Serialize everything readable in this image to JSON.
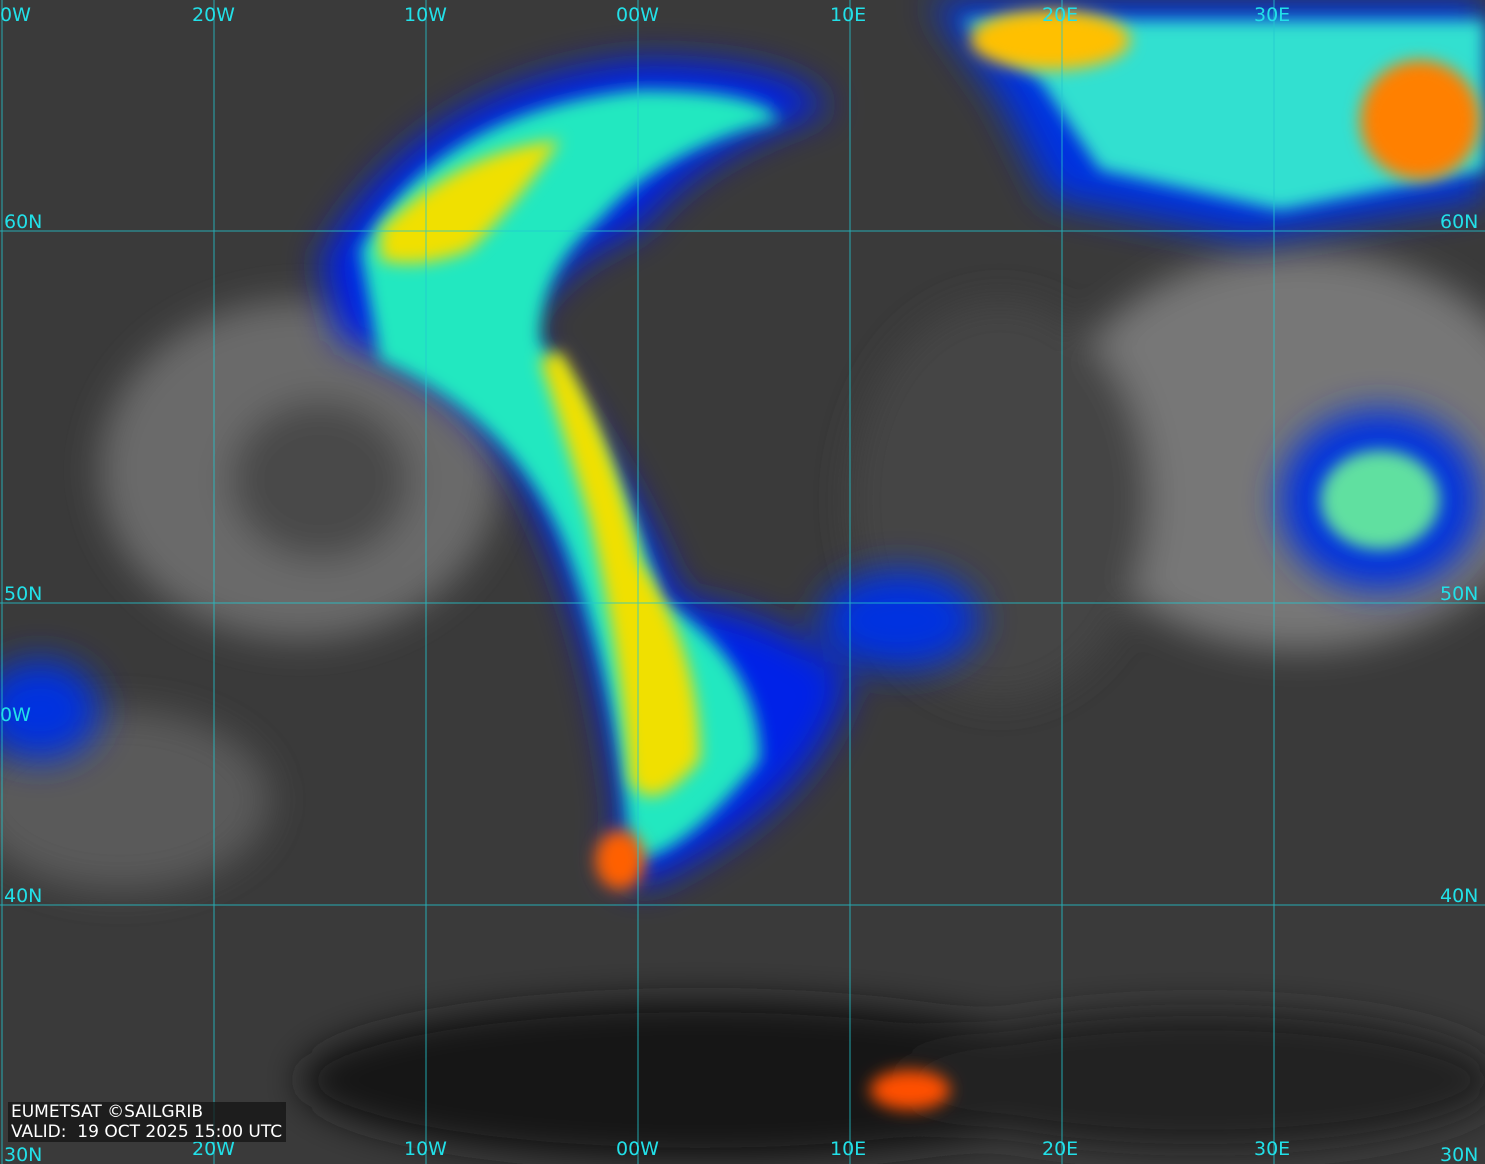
{
  "credit": "EUMETSAT ©SAILGRIB",
  "valid_label": "VALID:",
  "valid_time": "19 OCT 2025 15:00 UTC",
  "grid": {
    "top_lon_labels": [
      "0W",
      "20W",
      "10W",
      "00W",
      "10E",
      "20E",
      "30E"
    ],
    "bottom_lon_labels": [
      "20W",
      "10W",
      "00W",
      "10E",
      "20E",
      "30E"
    ],
    "left_lat_labels": [
      "60N",
      "50N",
      "40N",
      "0W",
      "30N"
    ],
    "right_lat_labels": [
      "60N",
      "50N",
      "40N",
      "30N"
    ]
  },
  "colors": {
    "grid": "#22e0e8",
    "coast": "#ffffff",
    "cloud_cold": "#0010e0",
    "cloud_mid": "#00e0e0",
    "cloud_warm": "#f0f000",
    "cloud_hot": "#ff3000"
  }
}
